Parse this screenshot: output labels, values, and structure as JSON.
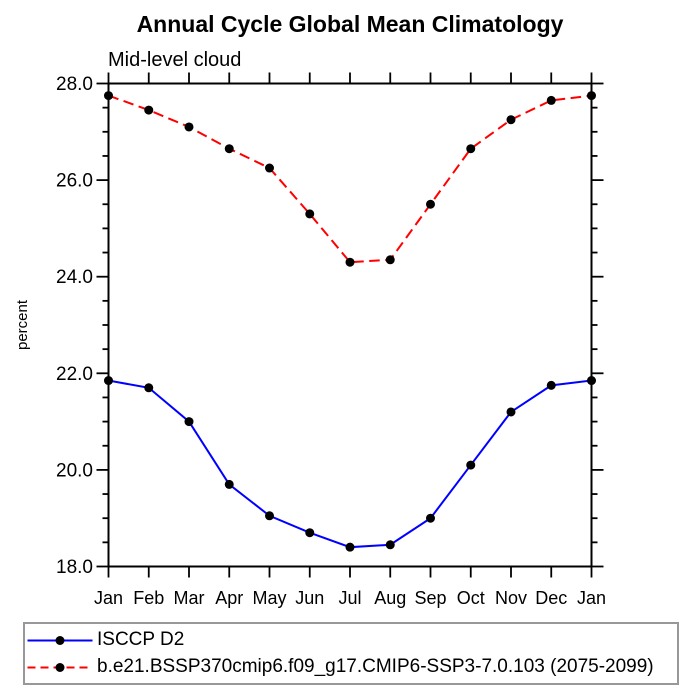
{
  "chart_data": {
    "type": "line",
    "title": "Annual Cycle Global Mean Climatology",
    "subtitle": "Mid-level cloud",
    "xlabel": "",
    "ylabel": "percent",
    "categories": [
      "Jan",
      "Feb",
      "Mar",
      "Apr",
      "May",
      "Jun",
      "Jul",
      "Aug",
      "Sep",
      "Oct",
      "Nov",
      "Dec",
      "Jan"
    ],
    "ylim": [
      18.0,
      28.0
    ],
    "ytick_major_interval": 2.0,
    "ytick_minor_interval": 0.5,
    "ytick_labels": [
      "18.0",
      "20.0",
      "22.0",
      "24.0",
      "26.0",
      "28.0"
    ],
    "grid": false,
    "legend_position": "bottom",
    "series": [
      {
        "name": "ISCCP D2",
        "color": "#0000ff",
        "line_style": "solid",
        "marker": "filled-circle",
        "marker_color": "#000000",
        "values": [
          21.85,
          21.7,
          21.0,
          19.7,
          19.05,
          18.7,
          18.4,
          18.45,
          19.0,
          20.1,
          21.2,
          21.75,
          21.85
        ]
      },
      {
        "name": "b.e21.BSSP370cmip6.f09_g17.CMIP6-SSP3-7.0.103 (2075-2099)",
        "color": "#ff0000",
        "line_style": "dashed",
        "marker": "filled-circle",
        "marker_color": "#000000",
        "values": [
          27.75,
          27.45,
          27.1,
          26.65,
          26.25,
          25.3,
          24.3,
          24.35,
          25.5,
          26.65,
          27.25,
          27.65,
          27.75
        ]
      }
    ],
    "axis_color": "#000000"
  },
  "legend": {
    "border_color": "#989898"
  }
}
